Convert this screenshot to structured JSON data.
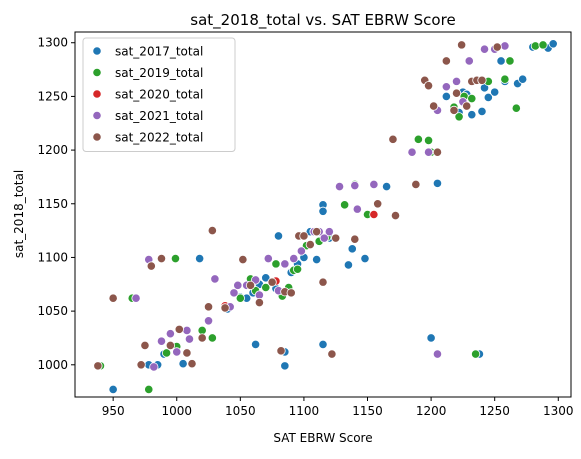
{
  "chart_data": {
    "type": "scatter",
    "title": "sat_2018_total vs. SAT EBRW Score",
    "xlabel": "SAT EBRW Score",
    "ylabel": "sat_2018_total",
    "xlim": [
      920,
      1310
    ],
    "ylim": [
      970,
      1310
    ],
    "x_ticks": [
      {
        "value": 950,
        "label": "950"
      },
      {
        "value": 1000,
        "label": "1000"
      },
      {
        "value": 1050,
        "label": "1050"
      },
      {
        "value": 1100,
        "label": "1100"
      },
      {
        "value": 1150,
        "label": "1150"
      },
      {
        "value": 1200,
        "label": "1200"
      },
      {
        "value": 1250,
        "label": "1250"
      },
      {
        "value": 1300,
        "label": "1300"
      }
    ],
    "y_ticks": [
      {
        "value": 1000,
        "label": "1000"
      },
      {
        "value": 1050,
        "label": "1050"
      },
      {
        "value": 1100,
        "label": "1100"
      },
      {
        "value": 1150,
        "label": "1150"
      },
      {
        "value": 1200,
        "label": "1200"
      },
      {
        "value": 1250,
        "label": "1250"
      },
      {
        "value": 1300,
        "label": "1300"
      }
    ],
    "grid": false,
    "legend_position": "top-left",
    "series": [
      {
        "name": "sat_2017_total",
        "color": "#1f77b4",
        "points": [
          [
            950,
            977
          ],
          [
            978,
            1000
          ],
          [
            985,
            1000
          ],
          [
            990,
            1010
          ],
          [
            1005,
            1001
          ],
          [
            1018,
            1099
          ],
          [
            1020,
            1032
          ],
          [
            1040,
            1052
          ],
          [
            1050,
            1063
          ],
          [
            1055,
            1062
          ],
          [
            1060,
            1067
          ],
          [
            1062,
            1019
          ],
          [
            1065,
            1075
          ],
          [
            1070,
            1081
          ],
          [
            1078,
            1071
          ],
          [
            1080,
            1120
          ],
          [
            1085,
            999
          ],
          [
            1085,
            1012
          ],
          [
            1090,
            1086
          ],
          [
            1095,
            1094
          ],
          [
            1100,
            1100
          ],
          [
            1105,
            1124
          ],
          [
            1110,
            1098
          ],
          [
            1115,
            1149
          ],
          [
            1115,
            1143
          ],
          [
            1115,
            1019
          ],
          [
            1120,
            1118
          ],
          [
            1135,
            1093
          ],
          [
            1138,
            1108
          ],
          [
            1148,
            1099
          ],
          [
            1165,
            1166
          ],
          [
            1200,
            1025
          ],
          [
            1205,
            1169
          ],
          [
            1212,
            1250
          ],
          [
            1218,
            1237
          ],
          [
            1222,
            1235
          ],
          [
            1225,
            1254
          ],
          [
            1228,
            1252
          ],
          [
            1232,
            1233
          ],
          [
            1238,
            1010
          ],
          [
            1240,
            1236
          ],
          [
            1242,
            1258
          ],
          [
            1245,
            1249
          ],
          [
            1250,
            1254
          ],
          [
            1255,
            1283
          ],
          [
            1258,
            1264
          ],
          [
            1268,
            1262
          ],
          [
            1272,
            1266
          ],
          [
            1280,
            1296
          ],
          [
            1292,
            1295
          ],
          [
            1296,
            1299
          ]
        ]
      },
      {
        "name": "sat_2019_total",
        "color": "#2ca02c",
        "points": [
          [
            940,
            999
          ],
          [
            965,
            1062
          ],
          [
            978,
            977
          ],
          [
            992,
            1011
          ],
          [
            999,
            1099
          ],
          [
            1000,
            1017
          ],
          [
            1020,
            1032
          ],
          [
            1028,
            1025
          ],
          [
            1050,
            1062
          ],
          [
            1058,
            1080
          ],
          [
            1062,
            1069
          ],
          [
            1070,
            1072
          ],
          [
            1078,
            1094
          ],
          [
            1083,
            1064
          ],
          [
            1088,
            1072
          ],
          [
            1092,
            1088
          ],
          [
            1095,
            1089
          ],
          [
            1102,
            1111
          ],
          [
            1108,
            1124
          ],
          [
            1112,
            1115
          ],
          [
            1118,
            1119
          ],
          [
            1132,
            1149
          ],
          [
            1140,
            1168
          ],
          [
            1150,
            1140
          ],
          [
            1190,
            1210
          ],
          [
            1198,
            1209
          ],
          [
            1200,
            1198
          ],
          [
            1218,
            1240
          ],
          [
            1222,
            1231
          ],
          [
            1226,
            1250
          ],
          [
            1232,
            1248
          ],
          [
            1235,
            1010
          ],
          [
            1240,
            1265
          ],
          [
            1245,
            1264
          ],
          [
            1258,
            1266
          ],
          [
            1262,
            1283
          ],
          [
            1267,
            1239
          ],
          [
            1282,
            1297
          ],
          [
            1288,
            1298
          ]
        ]
      },
      {
        "name": "sat_2020_total",
        "color": "#d62728",
        "points": [
          [
            1038,
            1055
          ],
          [
            1078,
            1078
          ],
          [
            1155,
            1140
          ]
        ]
      },
      {
        "name": "sat_2021_total",
        "color": "#9467bd",
        "points": [
          [
            938,
            999
          ],
          [
            968,
            1062
          ],
          [
            978,
            1098
          ],
          [
            982,
            998
          ],
          [
            988,
            1022
          ],
          [
            995,
            1029
          ],
          [
            1000,
            1012
          ],
          [
            1008,
            1032
          ],
          [
            1010,
            1024
          ],
          [
            1025,
            1041
          ],
          [
            1030,
            1080
          ],
          [
            1042,
            1054
          ],
          [
            1045,
            1067
          ],
          [
            1048,
            1074
          ],
          [
            1055,
            1074
          ],
          [
            1062,
            1079
          ],
          [
            1065,
            1065
          ],
          [
            1072,
            1099
          ],
          [
            1080,
            1069
          ],
          [
            1085,
            1094
          ],
          [
            1092,
            1099
          ],
          [
            1098,
            1106
          ],
          [
            1108,
            1124
          ],
          [
            1112,
            1124
          ],
          [
            1116,
            1118
          ],
          [
            1120,
            1124
          ],
          [
            1128,
            1166
          ],
          [
            1140,
            1167
          ],
          [
            1142,
            1145
          ],
          [
            1155,
            1168
          ],
          [
            1185,
            1198
          ],
          [
            1198,
            1198
          ],
          [
            1205,
            1010
          ],
          [
            1205,
            1237
          ],
          [
            1212,
            1259
          ],
          [
            1220,
            1264
          ],
          [
            1225,
            1245
          ],
          [
            1230,
            1283
          ],
          [
            1235,
            1265
          ],
          [
            1242,
            1294
          ],
          [
            1250,
            1294
          ],
          [
            1258,
            1297
          ]
        ]
      },
      {
        "name": "sat_2022_total",
        "color": "#8c564b",
        "points": [
          [
            938,
            999
          ],
          [
            950,
            1062
          ],
          [
            972,
            1000
          ],
          [
            975,
            1018
          ],
          [
            980,
            1092
          ],
          [
            988,
            1099
          ],
          [
            995,
            1018
          ],
          [
            1002,
            1033
          ],
          [
            1008,
            1011
          ],
          [
            1012,
            1001
          ],
          [
            1020,
            1025
          ],
          [
            1025,
            1054
          ],
          [
            1028,
            1125
          ],
          [
            1038,
            1053
          ],
          [
            1052,
            1098
          ],
          [
            1058,
            1074
          ],
          [
            1065,
            1058
          ],
          [
            1075,
            1077
          ],
          [
            1082,
            1013
          ],
          [
            1085,
            1068
          ],
          [
            1090,
            1067
          ],
          [
            1096,
            1120
          ],
          [
            1100,
            1120
          ],
          [
            1105,
            1112
          ],
          [
            1110,
            1124
          ],
          [
            1115,
            1077
          ],
          [
            1122,
            1010
          ],
          [
            1125,
            1118
          ],
          [
            1140,
            1117
          ],
          [
            1158,
            1150
          ],
          [
            1170,
            1210
          ],
          [
            1172,
            1139
          ],
          [
            1188,
            1168
          ],
          [
            1195,
            1265
          ],
          [
            1198,
            1260
          ],
          [
            1202,
            1241
          ],
          [
            1205,
            1198
          ],
          [
            1212,
            1283
          ],
          [
            1218,
            1237
          ],
          [
            1220,
            1253
          ],
          [
            1224,
            1298
          ],
          [
            1228,
            1241
          ],
          [
            1232,
            1264
          ],
          [
            1236,
            1265
          ],
          [
            1240,
            1265
          ],
          [
            1252,
            1296
          ]
        ]
      }
    ]
  }
}
